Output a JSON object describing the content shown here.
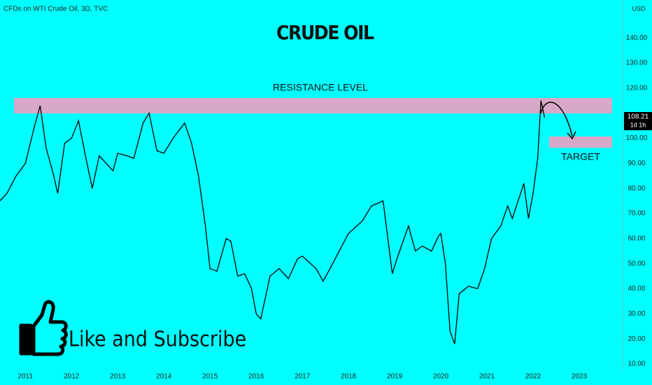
{
  "chart_data": {
    "type": "line",
    "header": "CFDs on WTI Crude Oil, 3D, TVC",
    "title": "CRUDE OIL",
    "currency": "USD",
    "resistance_label": "RESISTANCE LEVEL",
    "target_label": "TARGET",
    "promo": "Like and Subscribe",
    "last_price": 108.21,
    "countdown": "1d 1h",
    "color": "#000000",
    "x": [
      2010.45,
      2010.6,
      2010.8,
      2011.0,
      2011.2,
      2011.32,
      2011.45,
      2011.6,
      2011.7,
      2011.85,
      2012.0,
      2012.15,
      2012.3,
      2012.45,
      2012.6,
      2012.75,
      2012.9,
      2013.0,
      2013.2,
      2013.35,
      2013.55,
      2013.68,
      2013.85,
      2014.0,
      2014.2,
      2014.45,
      2014.6,
      2014.75,
      2014.9,
      2015.0,
      2015.15,
      2015.35,
      2015.45,
      2015.6,
      2015.75,
      2015.9,
      2016.0,
      2016.1,
      2016.3,
      2016.5,
      2016.7,
      2016.9,
      2017.0,
      2017.3,
      2017.45,
      2017.6,
      2017.8,
      2018.0,
      2018.3,
      2018.5,
      2018.75,
      2018.95,
      2019.05,
      2019.3,
      2019.45,
      2019.6,
      2019.8,
      2019.95,
      2020.0,
      2020.1,
      2020.2,
      2020.3,
      2020.4,
      2020.6,
      2020.8,
      2020.95,
      2021.1,
      2021.3,
      2021.45,
      2021.55,
      2021.8,
      2021.9,
      2022.0,
      2022.1,
      2022.17,
      2022.25
    ],
    "values": [
      75,
      78,
      85,
      90,
      105,
      113,
      96,
      86,
      78,
      98,
      100,
      107,
      93,
      80,
      93,
      90,
      87,
      94,
      93,
      92,
      106,
      110,
      95,
      94,
      100,
      106,
      98,
      85,
      65,
      48,
      47,
      60,
      59,
      45,
      46,
      40,
      30,
      28,
      45,
      48,
      44,
      52,
      53,
      48,
      43,
      48,
      55,
      62,
      67,
      73,
      75,
      46,
      52,
      65,
      55,
      57,
      55,
      61,
      62,
      50,
      23,
      18,
      38,
      41,
      40,
      48,
      60,
      65,
      73,
      68,
      82,
      68,
      78,
      92,
      115,
      108.21
    ],
    "xlim": [
      2010.45,
      2023.94
    ],
    "ylim": [
      7.2,
      155.1
    ],
    "xticks": [
      2011,
      2012,
      2013,
      2014,
      2015,
      2016,
      2017,
      2018,
      2019,
      2020,
      2021,
      2022,
      2023
    ],
    "yticks": [
      {
        "value": 10,
        "label": "10.00"
      },
      {
        "value": 20,
        "label": "20.00"
      },
      {
        "value": 30,
        "label": "30.00"
      },
      {
        "value": 40,
        "label": "40.00"
      },
      {
        "value": 50,
        "label": "50.00"
      },
      {
        "value": 60,
        "label": "60.00"
      },
      {
        "value": 70,
        "label": "70.00"
      },
      {
        "value": 80,
        "label": "80.00"
      },
      {
        "value": 90,
        "label": "90.00"
      },
      {
        "value": 100,
        "label": "100.00"
      },
      {
        "value": 120,
        "label": "120.00"
      },
      {
        "value": 130,
        "label": "130.00"
      },
      {
        "value": 140,
        "label": "140.00"
      }
    ]
  }
}
